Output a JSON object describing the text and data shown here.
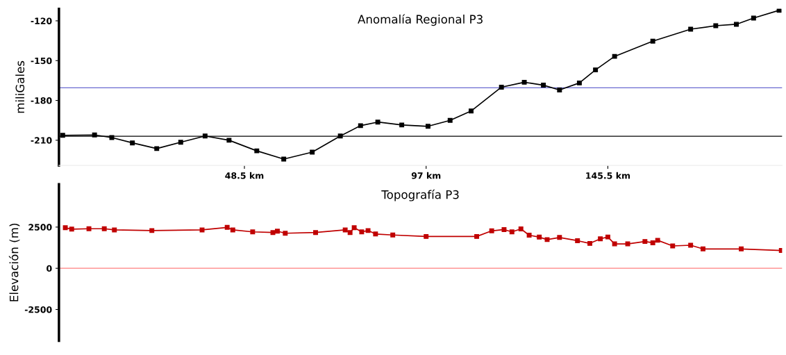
{
  "chart_data": [
    {
      "type": "line",
      "title": "Anomalía Regional P3",
      "ylabel": "miliGales",
      "marker": "square",
      "color": "#000000",
      "x": [
        0,
        8.5,
        13.1,
        18.6,
        25.1,
        31.5,
        38.0,
        44.4,
        51.8,
        59.0,
        66.6,
        74.1,
        79.5,
        84.1,
        90.5,
        97.5,
        103.4,
        109.0,
        117.1,
        123.2,
        128.3,
        132.6,
        137.9,
        142.2,
        147.3,
        157.5,
        167.6,
        174.3,
        179.8,
        184.4,
        191.2
      ],
      "values": [
        -206.3,
        -206,
        -208,
        -212,
        -216.3,
        -211.5,
        -206.8,
        -210,
        -218,
        -224.2,
        -219,
        -206.8,
        -199,
        -196.3,
        -198.5,
        -199.5,
        -195,
        -188,
        -170,
        -166.3,
        -168.5,
        -172.1,
        -166.8,
        -157,
        -146.8,
        -135.3,
        -126.3,
        -123.7,
        -122.6,
        -117.9,
        -112.1
      ],
      "xlim": [
        -1,
        192
      ],
      "xticks": [
        {
          "value": 48.5,
          "label": "48.5 km"
        },
        {
          "value": 97,
          "label": "97 km"
        },
        {
          "value": 145.5,
          "label": "145.5 km"
        }
      ],
      "ylim": [
        -229,
        -111
      ],
      "yticks": [
        -120,
        -150,
        -180,
        -210
      ],
      "grid": false,
      "ref_lines": [
        {
          "axis": "y",
          "value": -170.5,
          "color": "#6a6ad0"
        },
        {
          "axis": "y",
          "value": -207,
          "color": "#000000"
        }
      ]
    },
    {
      "type": "line",
      "title": "Topografía P3",
      "ylabel": "Elevación (m)",
      "marker": "square",
      "color": "#c00000",
      "tick_labels": "y",
      "x": [
        0.7,
        2.4,
        7.0,
        11.1,
        13.8,
        23.8,
        37.2,
        43.9,
        45.4,
        50.7,
        56.1,
        57.3,
        59.4,
        67.5,
        75.4,
        76.7,
        77.8,
        79.8,
        81.5,
        83.5,
        88.1,
        97.0,
        110.5,
        114.5,
        117.8,
        119.9,
        122.3,
        124.5,
        127.2,
        129.3,
        132.6,
        137.4,
        140.7,
        143.5,
        145.5,
        147.3,
        150.8,
        155.4,
        157.5,
        158.8,
        162.8,
        167.6,
        170.9,
        181.1,
        191.8
      ],
      "values": [
        2460,
        2375,
        2400,
        2400,
        2330,
        2290,
        2330,
        2480,
        2330,
        2210,
        2170,
        2250,
        2125,
        2170,
        2330,
        2170,
        2460,
        2210,
        2290,
        2080,
        2020,
        1930,
        1930,
        2270,
        2350,
        2210,
        2390,
        2010,
        1890,
        1740,
        1870,
        1675,
        1510,
        1790,
        1900,
        1480,
        1480,
        1625,
        1550,
        1700,
        1355,
        1400,
        1175,
        1175,
        1080
      ],
      "xlim": [
        -1,
        192
      ],
      "ylim": [
        -4400,
        5100
      ],
      "yticks": [
        2500,
        0,
        -2500
      ],
      "grid": false,
      "ref_lines": [
        {
          "axis": "y",
          "value": 0,
          "color": "#ff7f7f"
        }
      ]
    }
  ]
}
